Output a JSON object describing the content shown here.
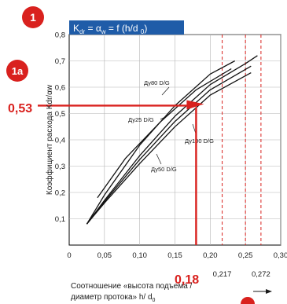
{
  "badges": {
    "main": "1",
    "sub": "1a"
  },
  "chart_data": {
    "type": "line",
    "title": "K",
    "title_parts": {
      "k": "K",
      "k_sub": "dr",
      "eq": " = ",
      "alpha": "α",
      "alpha_sub": "w",
      "rest": " = f (h/d ",
      "rest_sub": "0",
      "close": ")"
    },
    "ylabel": "Коэффициент расхода Kdr/αw",
    "xlabel_line1": "Соотношение «высота подъема /",
    "xlabel_line2": "диаметр протока» h/ d",
    "xlabel_sub": "0",
    "xlim": [
      0,
      0.3
    ],
    "ylim": [
      0,
      0.8
    ],
    "x_ticks": [
      {
        "value": 0,
        "label": "0"
      },
      {
        "value": 0.05,
        "label": "0,05"
      },
      {
        "value": 0.1,
        "label": "0,10"
      },
      {
        "value": 0.15,
        "label": "0,15"
      },
      {
        "value": 0.2,
        "label": "0,20"
      },
      {
        "value": 0.25,
        "label": "0,25"
      },
      {
        "value": 0.3,
        "label": "0,30"
      }
    ],
    "y_ticks": [
      {
        "value": 0.1,
        "label": "0,1"
      },
      {
        "value": 0.2,
        "label": "0,2"
      },
      {
        "value": 0.3,
        "label": "0,3"
      },
      {
        "value": 0.4,
        "label": "0,4"
      },
      {
        "value": 0.5,
        "label": "0,5"
      },
      {
        "value": 0.6,
        "label": "0,6"
      },
      {
        "value": 0.7,
        "label": "0,7"
      },
      {
        "value": 0.8,
        "label": "0,8"
      }
    ],
    "limits": [
      {
        "value": 0.217,
        "label": "0,217"
      },
      {
        "value": 0.25,
        "label": ""
      },
      {
        "value": 0.272,
        "label": "0,272"
      }
    ],
    "series": [
      {
        "name": "Ду80 D/G",
        "x": [
          0.025,
          0.05,
          0.1,
          0.15,
          0.2,
          0.235
        ],
        "y": [
          0.08,
          0.19,
          0.38,
          0.53,
          0.65,
          0.7
        ]
      },
      {
        "name": "Ду25 D/G",
        "x": [
          0.025,
          0.05,
          0.1,
          0.15,
          0.2,
          0.25,
          0.267
        ],
        "y": [
          0.08,
          0.17,
          0.34,
          0.49,
          0.61,
          0.69,
          0.72
        ]
      },
      {
        "name": "Ду100 D/G",
        "x": [
          0.025,
          0.05,
          0.1,
          0.15,
          0.2,
          0.258
        ],
        "y": [
          0.08,
          0.165,
          0.325,
          0.47,
          0.59,
          0.68
        ]
      },
      {
        "name": "Ду50 D/G",
        "x": [
          0.025,
          0.05,
          0.1,
          0.15,
          0.2,
          0.258
        ],
        "y": [
          0.08,
          0.16,
          0.31,
          0.45,
          0.57,
          0.655
        ]
      },
      {
        "name": "",
        "x": [
          0.04,
          0.08,
          0.13,
          0.18,
          0.23
        ],
        "y": [
          0.18,
          0.33,
          0.47,
          0.59,
          0.67
        ]
      }
    ],
    "highlight": {
      "x": 0.18,
      "y": 0.53,
      "x_label": "0,18",
      "y_label": "0,53"
    },
    "grid": true
  }
}
